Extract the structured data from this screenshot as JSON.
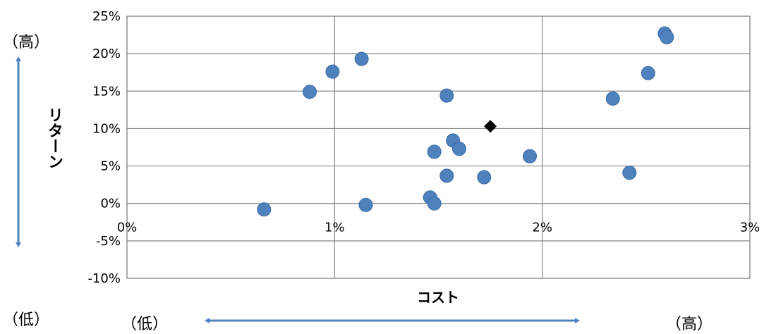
{
  "chart_data": {
    "type": "scatter",
    "title": "",
    "xlabel": "コスト",
    "ylabel": "リターン",
    "xlim": [
      0,
      3
    ],
    "ylim": [
      -10,
      25
    ],
    "x_ticks": [
      {
        "value": 0,
        "label": "0%"
      },
      {
        "value": 1,
        "label": "1%"
      },
      {
        "value": 2,
        "label": "2%"
      },
      {
        "value": 3,
        "label": "3%"
      }
    ],
    "y_ticks": [
      {
        "value": 25,
        "label": "25%"
      },
      {
        "value": 20,
        "label": "20%"
      },
      {
        "value": 15,
        "label": "15%"
      },
      {
        "value": 10,
        "label": "10%"
      },
      {
        "value": 5,
        "label": "5%"
      },
      {
        "value": 0,
        "label": "0%"
      },
      {
        "value": -5,
        "label": "-5%"
      },
      {
        "value": -10,
        "label": "-10%"
      }
    ],
    "grid": true,
    "series": [
      {
        "marker": "circle",
        "color": "#4F81BD",
        "points": [
          {
            "x": 0.66,
            "y": -0.8
          },
          {
            "x": 0.88,
            "y": 14.9
          },
          {
            "x": 0.99,
            "y": 17.6
          },
          {
            "x": 1.13,
            "y": 19.3
          },
          {
            "x": 1.15,
            "y": -0.2
          },
          {
            "x": 1.46,
            "y": 0.8
          },
          {
            "x": 1.48,
            "y": 0.0
          },
          {
            "x": 1.48,
            "y": 6.9
          },
          {
            "x": 1.54,
            "y": 3.7
          },
          {
            "x": 1.54,
            "y": 14.4
          },
          {
            "x": 1.57,
            "y": 8.4
          },
          {
            "x": 1.6,
            "y": 7.3
          },
          {
            "x": 1.72,
            "y": 3.5
          },
          {
            "x": 1.94,
            "y": 6.3
          },
          {
            "x": 2.34,
            "y": 14.0
          },
          {
            "x": 2.42,
            "y": 4.1
          },
          {
            "x": 2.51,
            "y": 17.4
          },
          {
            "x": 2.59,
            "y": 22.7
          },
          {
            "x": 2.6,
            "y": 22.2
          }
        ]
      },
      {
        "marker": "diamond",
        "color": "#000000",
        "points": [
          {
            "x": 1.75,
            "y": 10.3
          }
        ]
      }
    ],
    "annotations": {
      "y_high": "（高）",
      "y_low": "（低）",
      "x_low": "（低）",
      "x_high": "（高）"
    },
    "arrow_color": "#4F81BD",
    "grid_color": "#868686"
  }
}
